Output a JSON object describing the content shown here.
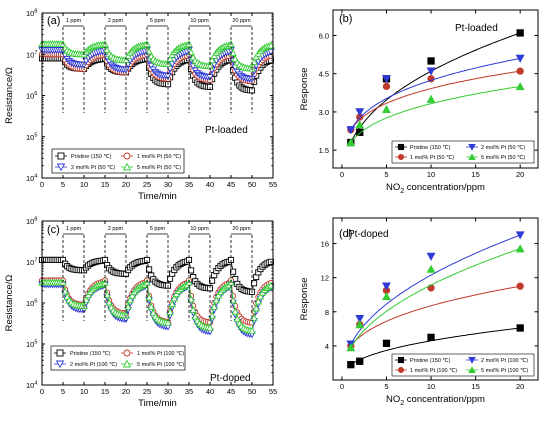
{
  "chart_data": [
    {
      "panel_label": "(a)",
      "type": "line",
      "title": "Pt-loaded",
      "xlabel": "Time/min",
      "ylabel": "Resistance/Ω",
      "xlim": [
        0,
        55
      ],
      "xticks": [
        "0",
        "5",
        "10",
        "15",
        "20",
        "25",
        "30",
        "35",
        "40",
        "45",
        "50",
        "55"
      ],
      "ylim_log10": [
        4,
        8
      ],
      "yticks": [
        {
          "base": "10",
          "exp": "4"
        },
        {
          "base": "10",
          "exp": "5"
        },
        {
          "base": "10",
          "exp": "6"
        },
        {
          "base": "10",
          "exp": "7"
        },
        {
          "base": "10",
          "exp": "8"
        }
      ],
      "annotations": [
        {
          "text": "1 ppm",
          "x_start": 5,
          "x_end": 10
        },
        {
          "text": "2 ppm",
          "x_start": 15,
          "x_end": 20
        },
        {
          "text": "5 ppm",
          "x_start": 25,
          "x_end": 30
        },
        {
          "text": "10 ppm",
          "x_start": 35,
          "x_end": 40
        },
        {
          "text": "20 ppm",
          "x_start": 45,
          "x_end": 50
        }
      ],
      "series": [
        {
          "name": "Pristine (150 ℃)",
          "color": "#000000",
          "marker": "square",
          "baseline_log": 6.9,
          "responses": [
            1.8,
            2.2,
            4.3,
            5.0,
            6.1
          ]
        },
        {
          "name": "1 mol% Pt (50 ℃)",
          "color": "#c0392b",
          "marker": "circle",
          "baseline_log": 7.0,
          "responses": [
            2.3,
            2.8,
            4.0,
            4.3,
            4.6
          ]
        },
        {
          "name": "2 mol% Pt (50 ℃)",
          "color": "#2e3bd6",
          "marker": "triangle-down",
          "baseline_log": 7.1,
          "responses": [
            2.3,
            3.0,
            4.3,
            4.6,
            5.1
          ]
        },
        {
          "name": "5 mol% Pt (50 ℃)",
          "color": "#33cc33",
          "marker": "triangle-up",
          "baseline_log": 7.25,
          "responses": [
            1.8,
            2.5,
            3.1,
            3.5,
            4.0
          ]
        }
      ]
    },
    {
      "panel_label": "(b)",
      "type": "scatter",
      "title": "Pt-loaded",
      "xlabel": {
        "pre": "NO",
        "sub": "2",
        "post": " concentration/ppm"
      },
      "ylabel": "Response",
      "xlim": [
        -1,
        22
      ],
      "ylim": [
        0.8,
        7.0
      ],
      "xticks": [
        0,
        5,
        10,
        15,
        20
      ],
      "yticks": [
        1.5,
        3.0,
        4.5,
        6.0
      ],
      "ytick_labels": [
        "1.5",
        "3.0",
        "4.5",
        "6.0"
      ],
      "x": [
        1,
        2,
        5,
        10,
        20
      ],
      "series": [
        {
          "name": "Pristine (150 ℃)",
          "color": "#000000",
          "marker": "square",
          "values": [
            1.8,
            2.2,
            4.3,
            5.0,
            6.1
          ]
        },
        {
          "name": "1 mol% Pt (50 ℃)",
          "color": "#c0392b",
          "marker": "circle",
          "values": [
            2.3,
            2.8,
            4.0,
            4.3,
            4.6
          ]
        },
        {
          "name": "2 mol% Pt (50 ℃)",
          "color": "#2e3bd6",
          "marker": "triangle-down",
          "values": [
            2.3,
            3.0,
            4.3,
            4.6,
            5.1
          ]
        },
        {
          "name": "5 mol% Pt (50 ℃)",
          "color": "#33cc33",
          "marker": "triangle-up",
          "values": [
            1.8,
            2.5,
            3.1,
            3.5,
            4.0
          ]
        }
      ]
    },
    {
      "panel_label": "(c)",
      "type": "line",
      "title": "Pt-doped",
      "xlabel": "Time/min",
      "ylabel": "Resistance/Ω",
      "xlim": [
        0,
        55
      ],
      "xticks": [
        "0",
        "5",
        "10",
        "15",
        "20",
        "25",
        "30",
        "35",
        "40",
        "45",
        "50",
        "55"
      ],
      "ylim_log10": [
        4,
        8
      ],
      "yticks": [
        {
          "base": "10",
          "exp": "4"
        },
        {
          "base": "10",
          "exp": "5"
        },
        {
          "base": "10",
          "exp": "6"
        },
        {
          "base": "10",
          "exp": "7"
        },
        {
          "base": "10",
          "exp": "8"
        }
      ],
      "annotations": [
        {
          "text": "1 ppm",
          "x_start": 5,
          "x_end": 10
        },
        {
          "text": "2 ppm",
          "x_start": 15,
          "x_end": 20
        },
        {
          "text": "5 ppm",
          "x_start": 25,
          "x_end": 30
        },
        {
          "text": "10 ppm",
          "x_start": 35,
          "x_end": 40
        },
        {
          "text": "20 ppm",
          "x_start": 45,
          "x_end": 50
        }
      ],
      "series": [
        {
          "name": "Pristine (150 ℃)",
          "color": "#000000",
          "marker": "square",
          "baseline_log": 7.05,
          "responses": [
            1.8,
            2.2,
            4.3,
            5.0,
            6.1
          ]
        },
        {
          "name": "1 mol% Pt (100 ℃)",
          "color": "#c0392b",
          "marker": "circle",
          "baseline_log": 6.55,
          "responses": [
            4.0,
            6.5,
            10.5,
            10.8,
            11.0
          ]
        },
        {
          "name": "2 mol% Pt (100 ℃)",
          "color": "#2e3bd6",
          "marker": "triangle-down",
          "baseline_log": 6.45,
          "responses": [
            4.2,
            7.2,
            11.0,
            14.5,
            17.0
          ]
        },
        {
          "name": "5 mol% Pt (100 ℃)",
          "color": "#33cc33",
          "marker": "triangle-up",
          "baseline_log": 6.5,
          "responses": [
            3.8,
            6.5,
            9.8,
            13.0,
            15.4
          ]
        }
      ]
    },
    {
      "panel_label": "(d)",
      "type": "scatter",
      "title": "Pt-doped",
      "xlabel": {
        "pre": "NO",
        "sub": "2",
        "post": " concentration/ppm"
      },
      "ylabel": "Response",
      "xlim": [
        -1,
        22
      ],
      "ylim": [
        0,
        19
      ],
      "xticks": [
        0,
        5,
        10,
        15,
        20
      ],
      "yticks": [
        4,
        8,
        12,
        16
      ],
      "ytick_labels": [
        "4",
        "8",
        "12",
        "16"
      ],
      "x": [
        1,
        2,
        5,
        10,
        20
      ],
      "series": [
        {
          "name": "Pristine (150 ℃)",
          "color": "#000000",
          "marker": "square",
          "values": [
            1.8,
            2.2,
            4.3,
            5.0,
            6.1
          ]
        },
        {
          "name": "1 mol% Pt (100 ℃)",
          "color": "#c0392b",
          "marker": "circle",
          "values": [
            4.0,
            6.5,
            10.5,
            10.8,
            11.0
          ]
        },
        {
          "name": "2 mol% Pt (100 ℃)",
          "color": "#2e3bd6",
          "marker": "triangle-down",
          "values": [
            4.2,
            7.2,
            11.0,
            14.5,
            17.0
          ]
        },
        {
          "name": "5 mol% Pt (100 ℃)",
          "color": "#33cc33",
          "marker": "triangle-up",
          "values": [
            3.8,
            6.5,
            9.8,
            13.0,
            15.4
          ]
        }
      ]
    }
  ]
}
